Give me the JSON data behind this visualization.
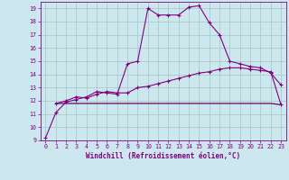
{
  "xlabel": "Windchill (Refroidissement éolien,°C)",
  "background_color": "#cce8ee",
  "grid_color": "#aacccc",
  "text_color": "#800080",
  "line_color": "#800080",
  "line_color2": "#660066",
  "xlim": [
    -0.5,
    23.5
  ],
  "ylim": [
    9,
    19.5
  ],
  "xtick_vals": [
    0,
    1,
    2,
    3,
    4,
    5,
    6,
    7,
    8,
    9,
    10,
    11,
    12,
    13,
    14,
    15,
    16,
    17,
    18,
    19,
    20,
    21,
    22,
    23
  ],
  "ytick_vals": [
    9,
    10,
    11,
    12,
    13,
    14,
    15,
    16,
    17,
    18,
    19
  ],
  "line1_x": [
    0,
    1,
    2,
    3,
    4,
    5,
    6,
    7,
    8,
    9,
    10,
    11,
    12,
    13,
    14,
    15,
    16,
    17,
    18,
    19,
    20,
    21,
    22,
    23
  ],
  "line1_y": [
    9.2,
    11.1,
    11.9,
    12.1,
    12.3,
    12.7,
    12.6,
    12.5,
    14.8,
    15.0,
    19.0,
    18.5,
    18.5,
    18.5,
    19.1,
    19.2,
    17.9,
    17.0,
    15.0,
    14.8,
    14.6,
    14.5,
    14.1,
    13.2
  ],
  "line2_x": [
    1,
    2,
    3,
    4,
    5,
    6,
    7,
    8,
    9,
    10,
    11,
    12,
    13,
    14,
    15,
    16,
    17,
    18,
    19,
    20,
    21,
    22,
    23
  ],
  "line2_y": [
    11.8,
    12.0,
    12.3,
    12.2,
    12.5,
    12.7,
    12.6,
    12.6,
    13.0,
    13.1,
    13.3,
    13.5,
    13.7,
    13.9,
    14.1,
    14.2,
    14.4,
    14.5,
    14.5,
    14.4,
    14.3,
    14.2,
    11.7
  ],
  "line3_x": [
    1,
    7,
    22,
    23
  ],
  "line3_y": [
    11.8,
    11.8,
    11.8,
    11.7
  ]
}
